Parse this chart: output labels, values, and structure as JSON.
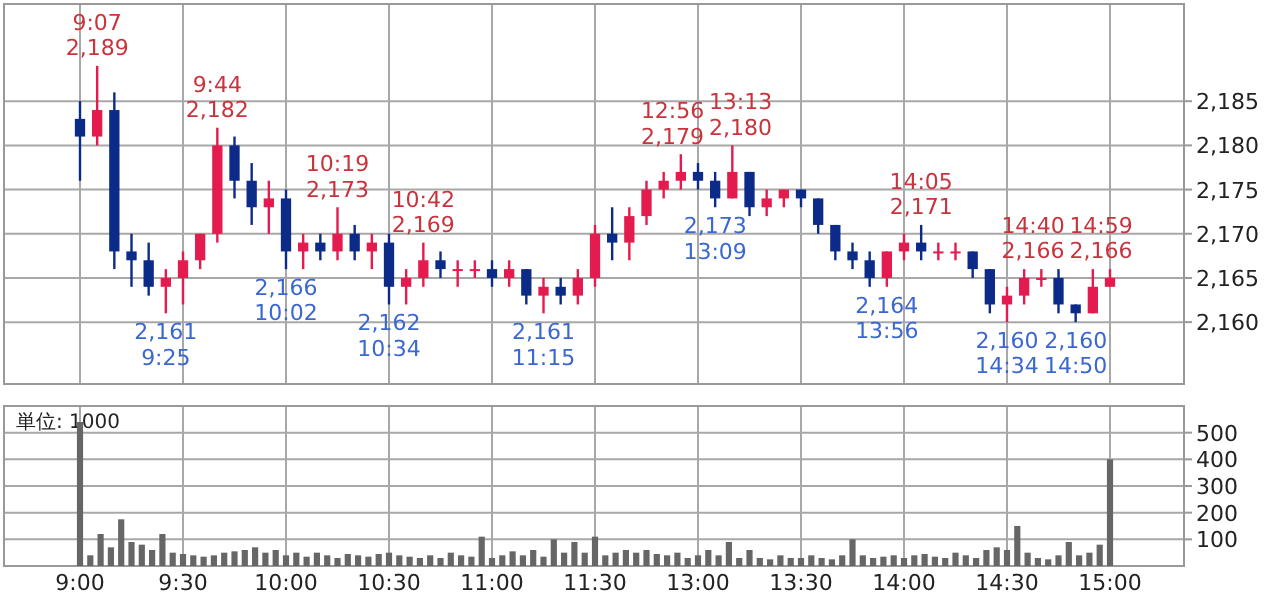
{
  "chart_data": [
    {
      "type": "candlestick",
      "categories": [
        null,
        null,
        null,
        null,
        null,
        null,
        null,
        null,
        null,
        null,
        null,
        null,
        null,
        null,
        null,
        null,
        null,
        null,
        null,
        null,
        null,
        null,
        null,
        null,
        null,
        null,
        null,
        null,
        null,
        null,
        null,
        null,
        null,
        null,
        null,
        null,
        null,
        null,
        null,
        null,
        null,
        null,
        null,
        null,
        null,
        null,
        null,
        null,
        null,
        null,
        null,
        null,
        null,
        null,
        null,
        null,
        null,
        null,
        null,
        null,
        null
      ],
      "ohlc": [
        [
          2183,
          2185,
          2176,
          2181
        ],
        [
          2181,
          2189,
          2180,
          2184
        ],
        [
          2184,
          2186,
          2166,
          2168
        ],
        [
          2168,
          2170,
          2164,
          2167
        ],
        [
          2167,
          2169,
          2163,
          2164
        ],
        [
          2164,
          2166,
          2161,
          2165
        ],
        [
          2165,
          2168,
          2162,
          2167
        ],
        [
          2167,
          2170,
          2166,
          2170
        ],
        [
          2170,
          2182,
          2169,
          2180
        ],
        [
          2180,
          2181,
          2174,
          2176
        ],
        [
          2176,
          2178,
          2171,
          2173
        ],
        [
          2173,
          2176,
          2170,
          2174
        ],
        [
          2174,
          2175,
          2166,
          2168
        ],
        [
          2168,
          2170,
          2166,
          2169
        ],
        [
          2169,
          2170,
          2167,
          2168
        ],
        [
          2168,
          2173,
          2167,
          2170
        ],
        [
          2170,
          2171,
          2167,
          2168
        ],
        [
          2168,
          2170,
          2166,
          2169
        ],
        [
          2169,
          2170,
          2162,
          2164
        ],
        [
          2164,
          2166,
          2162,
          2165
        ],
        [
          2165,
          2169,
          2164,
          2167
        ],
        [
          2167,
          2168,
          2165,
          2166
        ],
        [
          2166,
          2167,
          2164,
          2166
        ],
        [
          2166,
          2167,
          2165,
          2166
        ],
        [
          2166,
          2167,
          2164,
          2165
        ],
        [
          2165,
          2167,
          2164,
          2166
        ],
        [
          2166,
          2166,
          2162,
          2163
        ],
        [
          2163,
          2165,
          2161,
          2164
        ],
        [
          2164,
          2165,
          2162,
          2163
        ],
        [
          2163,
          2166,
          2162,
          2165
        ],
        [
          2165,
          2171,
          2164,
          2170
        ],
        [
          2170,
          2173,
          2167,
          2169
        ],
        [
          2169,
          2173,
          2167,
          2172
        ],
        [
          2172,
          2176,
          2171,
          2175
        ],
        [
          2175,
          2177,
          2174,
          2176
        ],
        [
          2176,
          2179,
          2175,
          2177
        ],
        [
          2177,
          2178,
          2175,
          2176
        ],
        [
          2176,
          2177,
          2173,
          2174
        ],
        [
          2174,
          2180,
          2174,
          2177
        ],
        [
          2177,
          2177,
          2172,
          2173
        ],
        [
          2173,
          2175,
          2172,
          2174
        ],
        [
          2174,
          2175,
          2173,
          2175
        ],
        [
          2175,
          2175,
          2173,
          2174
        ],
        [
          2174,
          2174,
          2170,
          2171
        ],
        [
          2171,
          2171,
          2167,
          2168
        ],
        [
          2168,
          2169,
          2166,
          2167
        ],
        [
          2167,
          2168,
          2164,
          2165
        ],
        [
          2165,
          2168,
          2164,
          2168
        ],
        [
          2168,
          2170,
          2167,
          2169
        ],
        [
          2169,
          2171,
          2167,
          2168
        ],
        [
          2168,
          2169,
          2167,
          2168
        ],
        [
          2168,
          2169,
          2167,
          2168
        ],
        [
          2168,
          2168,
          2165,
          2166
        ],
        [
          2166,
          2166,
          2161,
          2162
        ],
        [
          2162,
          2164,
          2160,
          2163
        ],
        [
          2163,
          2166,
          2162,
          2165
        ],
        [
          2165,
          2166,
          2164,
          2165
        ],
        [
          2165,
          2166,
          2161,
          2162
        ],
        [
          2162,
          2162,
          2160,
          2161
        ],
        [
          2161,
          2166,
          2161,
          2164
        ],
        [
          2164,
          2166,
          2164,
          2165
        ]
      ],
      "colors": [
        "#0c2a88",
        "#e31b4f",
        "#0c2a88",
        "#0c2a88",
        "#0c2a88",
        "#e31b4f",
        "#e31b4f",
        "#e31b4f",
        "#e31b4f",
        "#0c2a88",
        "#0c2a88",
        "#e31b4f",
        "#0c2a88",
        "#e31b4f",
        "#0c2a88",
        "#e31b4f",
        "#0c2a88",
        "#e31b4f",
        "#0c2a88",
        "#e31b4f",
        "#e31b4f",
        "#0c2a88",
        "#e31b4f",
        "#e31b4f",
        "#0c2a88",
        "#e31b4f",
        "#0c2a88",
        "#e31b4f",
        "#0c2a88",
        "#e31b4f",
        "#e31b4f",
        "#0c2a88",
        "#e31b4f",
        "#e31b4f",
        "#e31b4f",
        "#e31b4f",
        "#0c2a88",
        "#0c2a88",
        "#e31b4f",
        "#0c2a88",
        "#e31b4f",
        "#e31b4f",
        "#0c2a88",
        "#0c2a88",
        "#0c2a88",
        "#0c2a88",
        "#0c2a88",
        "#e31b4f",
        "#e31b4f",
        "#0c2a88",
        "#e31b4f",
        "#e31b4f",
        "#0c2a88",
        "#0c2a88",
        "#e31b4f",
        "#e31b4f",
        "#e31b4f",
        "#0c2a88",
        "#0c2a88",
        "#e31b4f",
        "#e31b4f"
      ],
      "ylim": [
        2153,
        2196
      ],
      "yticks": [
        {
          "value": 2160,
          "label": "2,160"
        },
        {
          "value": 2165,
          "label": "2,165"
        },
        {
          "value": 2170,
          "label": "2,170"
        },
        {
          "value": 2175,
          "label": "2,175"
        },
        {
          "value": 2180,
          "label": "2,180"
        },
        {
          "value": 2185,
          "label": "2,185"
        }
      ],
      "tick_labels": "y",
      "grid": true,
      "annotations": [
        "9:07\n2,189",
        "9:44\n2,182",
        "10:19\n2,173",
        "10:42\n2,169",
        "12:56\n2,179",
        "13:13\n2,180",
        "14:05\n2,171",
        "14:40\n2,166",
        "14:59\n2,166",
        "2,161\n9:25",
        "2,166\n10:02",
        "2,162\n10:34",
        "2,161\n11:15",
        "2,173\n13:09",
        "2,164\n13:56",
        "2,160\n14:34",
        "2,160\n14:50"
      ]
    },
    {
      "type": "bar",
      "categories": [
        "9:00",
        null,
        null,
        null,
        null,
        null,
        null,
        null,
        null,
        null,
        "9:30",
        null,
        null,
        null,
        null,
        null,
        null,
        null,
        null,
        null,
        "10:00",
        null,
        null,
        null,
        null,
        null,
        null,
        null,
        null,
        null,
        "10:30",
        null,
        null,
        null,
        null,
        null,
        null,
        null,
        null,
        null,
        "11:00",
        null,
        null,
        null,
        null,
        null,
        null,
        null,
        null,
        null,
        "11:30",
        null,
        null,
        null,
        null,
        null,
        null,
        null,
        null,
        null,
        "13:00",
        null,
        null,
        null,
        null,
        null,
        null,
        null,
        null,
        null,
        "13:30",
        null,
        null,
        null,
        null,
        null,
        null,
        null,
        null,
        null,
        "14:00",
        null,
        null,
        null,
        null,
        null,
        null,
        null,
        null,
        null,
        "14:30",
        null,
        null,
        null,
        null,
        null,
        null,
        null,
        null,
        null,
        "15:00"
      ],
      "values": [
        540,
        40,
        120,
        70,
        175,
        90,
        80,
        60,
        120,
        50,
        45,
        40,
        35,
        40,
        50,
        55,
        60,
        70,
        50,
        60,
        40,
        50,
        35,
        50,
        40,
        30,
        45,
        40,
        35,
        45,
        50,
        40,
        35,
        30,
        40,
        30,
        50,
        40,
        35,
        110,
        30,
        40,
        55,
        40,
        60,
        35,
        100,
        50,
        90,
        50,
        110,
        40,
        50,
        60,
        50,
        60,
        45,
        40,
        50,
        30,
        40,
        60,
        40,
        90,
        30,
        60,
        30,
        25,
        40,
        30,
        30,
        40,
        30,
        25,
        40,
        100,
        40,
        30,
        35,
        40,
        30,
        40,
        45,
        35,
        30,
        50,
        40,
        30,
        60,
        70,
        60,
        150,
        50,
        30,
        25,
        40,
        90,
        40,
        50,
        80,
        400
      ],
      "color": "#666666",
      "ylim": [
        0,
        600
      ],
      "yticks": [
        100,
        200,
        300,
        400,
        500
      ],
      "grid": true,
      "annotations": [
        "単位: 1000"
      ]
    }
  ]
}
